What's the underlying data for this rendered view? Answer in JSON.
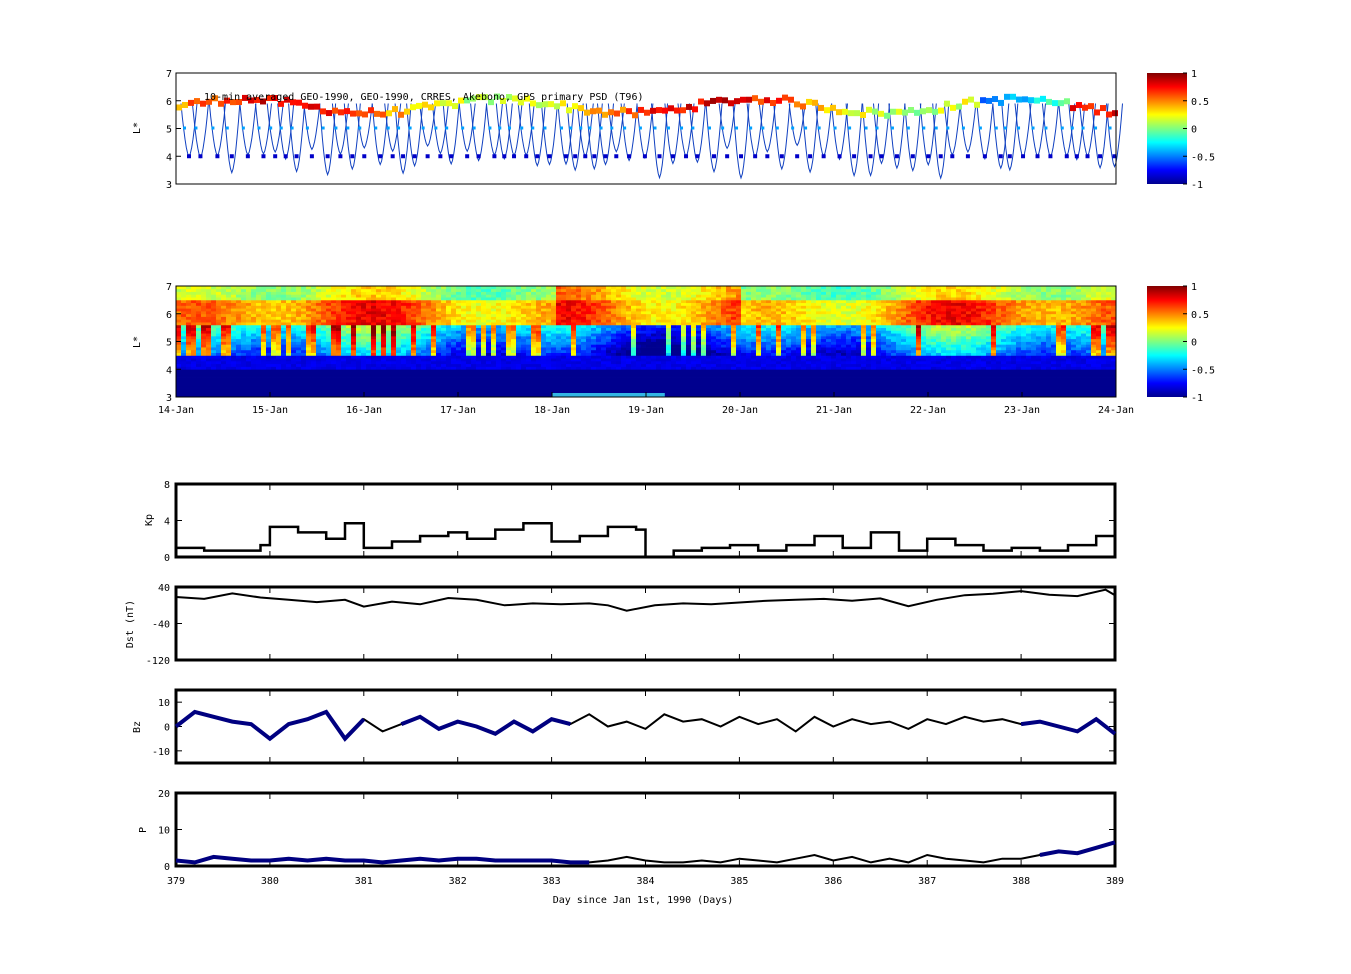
{
  "colors": {
    "jet": [
      "#00008f",
      "#0000ff",
      "#0080ff",
      "#00ffff",
      "#80ff80",
      "#ffff00",
      "#ff8000",
      "#ff0000",
      "#800000"
    ],
    "line": "#000000",
    "highlight": "#000080",
    "bar": "#33b5e5"
  },
  "chart_data": [
    {
      "type": "heatmap",
      "name": "observed-psd",
      "title": "10-min averaged GEO-1990, GEO-1990, CRRES, Akebono, GPS  primary PSD (T96)",
      "ylabel": "L*",
      "ylim": [
        3,
        7
      ],
      "yticks": [
        "3",
        "4",
        "5",
        "6",
        "7"
      ],
      "xlim": [
        379,
        389
      ],
      "colorbar": {
        "range": [
          -1,
          1
        ],
        "ticks": [
          "1",
          "0.5",
          "0",
          "-0.5",
          "-1"
        ]
      }
    },
    {
      "type": "heatmap",
      "name": "reanalysis-psd",
      "ylabel": "L*",
      "ylim": [
        3,
        7
      ],
      "yticks": [
        "3",
        "4",
        "5",
        "6",
        "7"
      ],
      "xlim": [
        379,
        389
      ],
      "xticklabels": [
        "14-Jan",
        "15-Jan",
        "16-Jan",
        "17-Jan",
        "18-Jan",
        "19-Jan",
        "20-Jan",
        "21-Jan",
        "22-Jan",
        "23-Jan",
        "24-Jan"
      ],
      "marker_bar": [
        383.0,
        384.2
      ],
      "colorbar": {
        "range": [
          -1,
          1
        ],
        "ticks": [
          "1",
          "0.5",
          "0",
          "-0.5",
          "-1"
        ]
      }
    },
    {
      "type": "line",
      "name": "kp",
      "ylabel": "Kp",
      "ylim": [
        0,
        8
      ],
      "yticks": [
        "0",
        "4",
        "8"
      ],
      "x": [
        379,
        379.3,
        379.6,
        379.9,
        380,
        380.3,
        380.6,
        380.8,
        381,
        381.3,
        381.6,
        381.9,
        382.1,
        382.4,
        382.7,
        383,
        383.3,
        383.6,
        383.9,
        384,
        384.3,
        384.6,
        384.9,
        385.2,
        385.5,
        385.8,
        386.1,
        386.4,
        386.7,
        387,
        387.3,
        387.6,
        387.9,
        388.2,
        388.5,
        388.8,
        389
      ],
      "y": [
        1,
        0.7,
        0.7,
        1.3,
        3.3,
        2.7,
        2,
        3.7,
        1,
        1.7,
        2.3,
        2.7,
        2,
        3,
        3.7,
        1.7,
        2.3,
        3.3,
        3,
        0,
        0.7,
        1,
        1.3,
        0.7,
        1.3,
        2.3,
        1,
        2.7,
        0.7,
        2,
        1.3,
        0.7,
        1,
        0.7,
        1.3,
        2.3,
        4
      ]
    },
    {
      "type": "line",
      "name": "dst",
      "ylabel": "Dst (nT)",
      "ylim": [
        -120,
        40
      ],
      "yticks": [
        "-120",
        "-40",
        "40"
      ],
      "x": [
        379,
        379.3,
        379.6,
        379.9,
        380.2,
        380.5,
        380.8,
        381,
        381.3,
        381.6,
        381.9,
        382.2,
        382.5,
        382.8,
        383.1,
        383.4,
        383.6,
        383.8,
        384.1,
        384.4,
        384.7,
        385,
        385.3,
        385.6,
        385.9,
        386.2,
        386.5,
        386.8,
        387.1,
        387.4,
        387.7,
        388,
        388.3,
        388.6,
        388.9,
        389
      ],
      "y": [
        18,
        14,
        26,
        17,
        12,
        7,
        12,
        -3,
        8,
        2,
        16,
        12,
        0,
        4,
        2,
        4,
        0,
        -12,
        0,
        4,
        2,
        6,
        10,
        12,
        14,
        10,
        15,
        -2,
        12,
        22,
        25,
        31,
        23,
        20,
        34,
        22
      ]
    },
    {
      "type": "line",
      "name": "bz",
      "ylabel": "Bz",
      "ylim": [
        -15,
        15
      ],
      "yticks": [
        "-10",
        "0",
        "10"
      ],
      "x": [
        379,
        379.2,
        379.4,
        379.6,
        379.8,
        380,
        380.2,
        380.4,
        380.6,
        380.8,
        381,
        381.2,
        381.4,
        381.6,
        381.8,
        382,
        382.2,
        382.4,
        382.6,
        382.8,
        383,
        383.2,
        383.4,
        383.6,
        383.8,
        384,
        384.2,
        384.4,
        384.6,
        384.8,
        385,
        385.2,
        385.4,
        385.6,
        385.8,
        386,
        386.2,
        386.4,
        386.6,
        386.8,
        387,
        387.2,
        387.4,
        387.6,
        387.8,
        388,
        388.2,
        388.4,
        388.6,
        388.8,
        389
      ],
      "y": [
        0,
        6,
        4,
        2,
        1,
        -5,
        1,
        3,
        6,
        -5,
        3,
        -2,
        1,
        4,
        -1,
        2,
        0,
        -3,
        2,
        -2,
        3,
        1,
        5,
        0,
        2,
        -1,
        5,
        2,
        3,
        0,
        4,
        1,
        3,
        -2,
        4,
        0,
        3,
        1,
        2,
        -1,
        3,
        1,
        4,
        2,
        3,
        1,
        2,
        0,
        -2,
        3,
        -3
      ]
    },
    {
      "type": "line",
      "name": "pressure",
      "ylabel": "P",
      "ylim": [
        0,
        20
      ],
      "yticks": [
        "0",
        "10",
        "20"
      ],
      "xlabel": "Day since Jan 1st, 1990 (Days)",
      "xticklabels": [
        "379",
        "380",
        "381",
        "382",
        "383",
        "384",
        "385",
        "386",
        "387",
        "388",
        "389"
      ],
      "x": [
        379,
        379.2,
        379.4,
        379.6,
        379.8,
        380,
        380.2,
        380.4,
        380.6,
        380.8,
        381,
        381.2,
        381.4,
        381.6,
        381.8,
        382,
        382.2,
        382.4,
        382.6,
        382.8,
        383,
        383.2,
        383.4,
        383.6,
        383.8,
        384,
        384.2,
        384.4,
        384.6,
        384.8,
        385,
        385.2,
        385.4,
        385.6,
        385.8,
        386,
        386.2,
        386.4,
        386.6,
        386.8,
        387,
        387.2,
        387.4,
        387.6,
        387.8,
        388,
        388.2,
        388.4,
        388.6,
        388.8,
        389
      ],
      "y": [
        1.5,
        1,
        2.5,
        2,
        1.5,
        1.5,
        2,
        1.5,
        2,
        1.5,
        1.5,
        1,
        1.5,
        2,
        1.5,
        2,
        2,
        1.5,
        1.5,
        1.5,
        1.5,
        1,
        1,
        1.5,
        2.5,
        1.5,
        1,
        1,
        1.5,
        1,
        2,
        1.5,
        1,
        2,
        3,
        1.5,
        2.5,
        1,
        2,
        1,
        3,
        2,
        1.5,
        1,
        2,
        2,
        3,
        4,
        3.5,
        5,
        6.5
      ]
    }
  ]
}
